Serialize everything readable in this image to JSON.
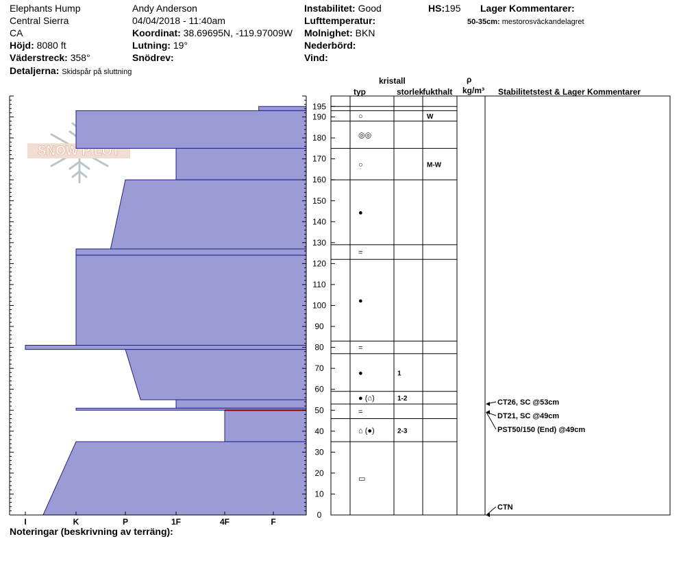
{
  "header": {
    "location": "Elephants Hump",
    "range": "Central Sierra",
    "state": "CA",
    "elevation_label": "Höjd:",
    "elevation_value": "8080 ft",
    "aspect_label": "Väderstreck:",
    "aspect_value": "358°",
    "details_label": "Detaljerna:",
    "details_value": "Skidspår på sluttning",
    "observer": "Andy Anderson",
    "datetime": "04/04/2018 - 11:40am",
    "air_temp_label": "Lufttemperatur:",
    "coord_label": "Koordinat:",
    "coord_value": "38.69695N, -119.97009W",
    "slope_label": "Lutning:",
    "slope_value": "19°",
    "drift_label": "Snödrev:",
    "stability_label": "Instabilitet:",
    "stability_value": "Good",
    "sky_label": "Molnighet:",
    "sky_value": "BKN",
    "precip_label": "Nederbörd:",
    "wind_label": "Vind:",
    "hs_label": "HS:",
    "hs_value": "195",
    "layer_comments_label": "Lager Kommentarer:",
    "layer_comment_range": "50-35cm:",
    "layer_comment_text": "mestorosväckandelagret"
  },
  "logo": {
    "text": "SNOW PILOT"
  },
  "columns": {
    "crystal": "kristall",
    "type": "typ",
    "size": "storlek",
    "moisture": "fukthalt",
    "rho": "ρ",
    "density_unit": "kg/m³",
    "tests": "Stabilitetstest & Lager Kommentarer"
  },
  "footer": {
    "notes_label": "Noteringar (beskrivning av terräng):"
  },
  "chart_data": {
    "type": "snow-profile",
    "ylim": [
      0,
      200
    ],
    "y_ticks": [
      0,
      10,
      20,
      30,
      40,
      50,
      60,
      70,
      80,
      90,
      100,
      110,
      120,
      130,
      140,
      150,
      160,
      170,
      180,
      190,
      195
    ],
    "hardness_scale": [
      "I",
      "K",
      "P",
      "1F",
      "4F",
      "F"
    ],
    "hardness_profile": [
      {
        "top": 195,
        "bottom": 193,
        "hardness_top": 5.7,
        "hardness_bottom": 5.7
      },
      {
        "top": 193,
        "bottom": 175,
        "hardness_top": 2,
        "hardness_bottom": 2
      },
      {
        "top": 175,
        "bottom": 160,
        "hardness_top": 4,
        "hardness_bottom": 4
      },
      {
        "top": 160,
        "bottom": 127,
        "hardness_top": 3,
        "hardness_bottom": 2.7
      },
      {
        "top": 127,
        "bottom": 124,
        "hardness_top": 2,
        "hardness_bottom": 2
      },
      {
        "top": 124,
        "bottom": 81,
        "hardness_top": 2,
        "hardness_bottom": 2
      },
      {
        "top": 81,
        "bottom": 79,
        "hardness_top": 1,
        "hardness_bottom": 1
      },
      {
        "top": 79,
        "bottom": 55,
        "hardness_top": 3,
        "hardness_bottom": 3.3
      },
      {
        "top": 55,
        "bottom": 51,
        "hardness_top": 4,
        "hardness_bottom": 4
      },
      {
        "top": 51,
        "bottom": 50,
        "hardness_top": 2,
        "hardness_bottom": 2
      },
      {
        "top": 50,
        "bottom": 35,
        "hardness_top": 5,
        "hardness_bottom": 5
      },
      {
        "top": 35,
        "bottom": 0,
        "hardness_top": 2,
        "hardness_bottom": 1.35
      }
    ],
    "failure_line_cm": 50,
    "layers": [
      {
        "top": 195,
        "bottom": 193,
        "type": "",
        "size": "",
        "moisture": ""
      },
      {
        "top": 193,
        "bottom": 188,
        "type": "○",
        "size": "",
        "moisture": "W"
      },
      {
        "top": 188,
        "bottom": 175,
        "type": "◎◎",
        "size": "",
        "moisture": ""
      },
      {
        "top": 175,
        "bottom": 160,
        "type": "○",
        "size": "",
        "moisture": "M-W"
      },
      {
        "top": 160,
        "bottom": 129,
        "type": "●",
        "size": "",
        "moisture": ""
      },
      {
        "top": 129,
        "bottom": 122,
        "type": "=",
        "size": "",
        "moisture": ""
      },
      {
        "top": 122,
        "bottom": 83,
        "type": "●",
        "size": "",
        "moisture": ""
      },
      {
        "top": 83,
        "bottom": 77,
        "type": "=",
        "size": "",
        "moisture": ""
      },
      {
        "top": 77,
        "bottom": 59,
        "type": "●",
        "size": "1",
        "moisture": ""
      },
      {
        "top": 59,
        "bottom": 53,
        "type": "● (⌂)",
        "size": "1-2",
        "moisture": ""
      },
      {
        "top": 53,
        "bottom": 46,
        "type": "=",
        "size": "",
        "moisture": ""
      },
      {
        "top": 46,
        "bottom": 35,
        "type": "⌂ (●)",
        "size": "2-3",
        "moisture": ""
      },
      {
        "top": 35,
        "bottom": 0,
        "type": "▭",
        "size": "",
        "moisture": ""
      }
    ],
    "stability_tests": [
      {
        "label": "CT26, SC @53cm",
        "depth_cm": 53
      },
      {
        "label": "DT21, SC @49cm",
        "depth_cm": 49
      },
      {
        "label": "PST50/150 (End) @49cm",
        "depth_cm": 49
      },
      {
        "label": "CTN",
        "depth_cm": 0
      }
    ]
  }
}
